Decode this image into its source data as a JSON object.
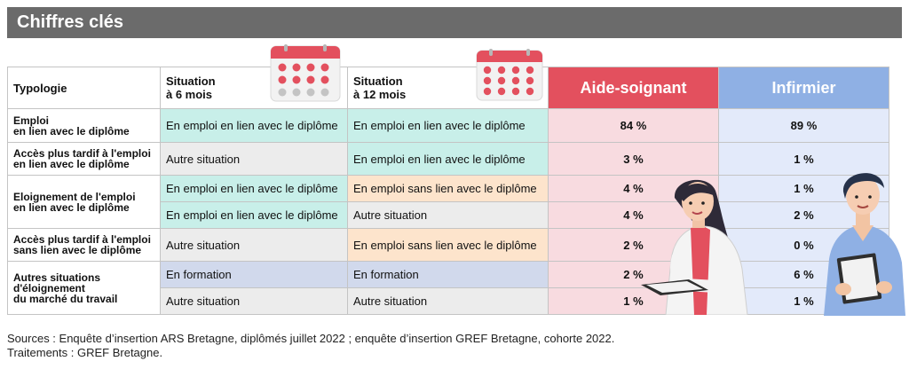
{
  "title": "Chiffres clés",
  "headers": {
    "typologie": "Typologie",
    "situation6": [
      "Situation",
      "à 6 mois"
    ],
    "situation12": [
      "Situation",
      "à 12 mois"
    ],
    "aide": "Aide-soignant",
    "infirmier": "Infirmier"
  },
  "groups": [
    {
      "label": [
        "Emploi",
        "en lien avec le diplôme"
      ],
      "rows": [
        {
          "s6": "En emploi en lien avec le diplôme",
          "s6_color": "teal",
          "s12": "En emploi en lien avec le diplôme",
          "s12_color": "teal",
          "aide": "84 %",
          "inf": "89 %"
        }
      ]
    },
    {
      "label": [
        "Accès plus tardif à l'emploi",
        "en lien avec le diplôme"
      ],
      "rows": [
        {
          "s6": "Autre situation",
          "s6_color": "gray",
          "s12": "En emploi en lien avec le diplôme",
          "s12_color": "teal",
          "aide": "3 %",
          "inf": "1 %"
        }
      ]
    },
    {
      "label": [
        "Eloignement de l'emploi",
        "en lien avec le diplôme"
      ],
      "rows": [
        {
          "s6": "En emploi en lien avec le diplôme",
          "s6_color": "teal",
          "s12": "En emploi sans lien avec le diplôme",
          "s12_color": "peach",
          "aide": "4 %",
          "inf": "1 %"
        },
        {
          "s6": "En emploi en lien avec le diplôme",
          "s6_color": "teal",
          "s12": "Autre situation",
          "s12_color": "gray",
          "aide": "4 %",
          "inf": "2 %"
        }
      ]
    },
    {
      "label": [
        "Accès plus tardif à l'emploi",
        "sans lien avec le diplôme"
      ],
      "rows": [
        {
          "s6": "Autre situation",
          "s6_color": "gray",
          "s12": "En emploi sans lien avec le diplôme",
          "s12_color": "peach",
          "aide": "2 %",
          "inf": "0 %"
        }
      ]
    },
    {
      "label": [
        "Autres situations",
        "d'éloignement",
        "du marché du travail"
      ],
      "rows": [
        {
          "s6": "En formation",
          "s6_color": "lav",
          "s12": "En formation",
          "s12_color": "lav",
          "aide": "2 %",
          "inf": "6 %"
        },
        {
          "s6": "Autre situation",
          "s6_color": "gray",
          "s12": "Autre situation",
          "s12_color": "gray",
          "aide": "1 %",
          "inf": "1 %"
        }
      ]
    }
  ],
  "sources": [
    "Sources : Enquête d’insertion ARS Bretagne, diplômés juillet 2022 ; enquête d’insertion GREF Bretagne, cohorte 2022.",
    "Traitements : GREF Bretagne."
  ],
  "icons": [
    "calendar-icon",
    "calendar-icon",
    "nurse-woman-illustration",
    "nurse-man-illustration"
  ],
  "colors": {
    "title_bg": "#6b6b6b",
    "aide": "#e3505e",
    "infirmier": "#8fb0e4",
    "teal": "#c8efe9",
    "gray": "#ececec",
    "peach": "#fde4cc",
    "lavender": "#d1d9ec"
  }
}
